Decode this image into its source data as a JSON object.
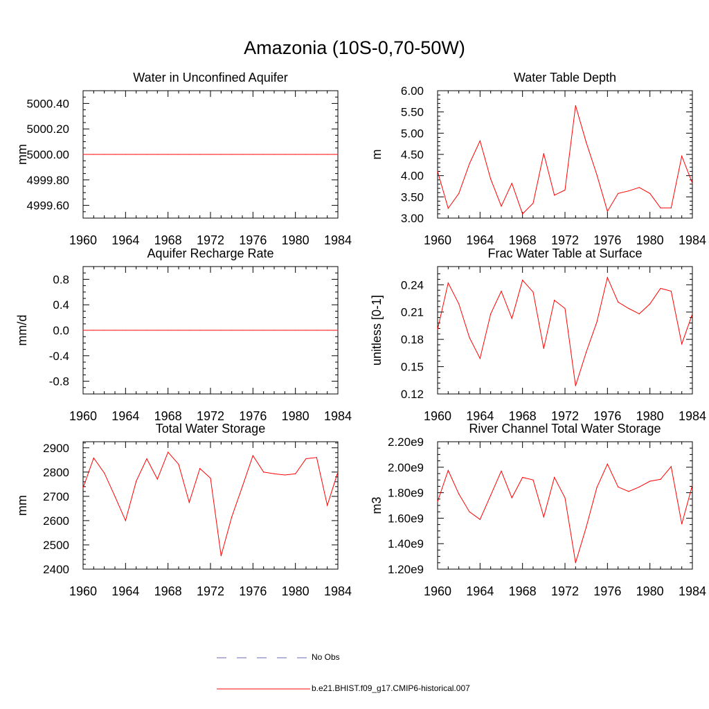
{
  "title": "Amazonia (10S-0,70-50W)",
  "colors": {
    "model": "#ff0000",
    "obs": "#6a6ab4",
    "axis": "#000000"
  },
  "legend": {
    "obs_label": "No Obs",
    "model_label": "b.e21.BHIST.f09_g17.CMIP6-historical.007"
  },
  "chart_data": [
    {
      "type": "line",
      "title": "Water in Unconfined Aquifer",
      "ylabel": "mm",
      "xlim": [
        1960,
        1984
      ],
      "ylim": [
        4999.5,
        5000.5
      ],
      "yticks": [
        4999.6,
        4999.8,
        5000.0,
        5000.2,
        5000.4
      ],
      "ytick_labels": [
        "4999.60",
        "4999.80",
        "5000.00",
        "5000.20",
        "5000.40"
      ],
      "yminor": [
        4999.55,
        4999.65,
        4999.7,
        4999.75,
        4999.85,
        4999.9,
        4999.95,
        5000.05,
        5000.1,
        5000.15,
        5000.25,
        5000.3,
        5000.35,
        5000.45
      ],
      "xticks": [
        1960,
        1964,
        1968,
        1972,
        1976,
        1980,
        1984
      ],
      "xtick_labels": [
        "1960",
        "1964",
        "1968",
        "1972",
        "1976",
        "1980",
        "1984"
      ],
      "x": [
        1960,
        1961,
        1962,
        1963,
        1964,
        1965,
        1966,
        1967,
        1968,
        1969,
        1970,
        1971,
        1972,
        1973,
        1974,
        1975,
        1976,
        1977,
        1978,
        1979,
        1980,
        1981,
        1982,
        1983,
        1984
      ],
      "values": [
        5000,
        5000,
        5000,
        5000,
        5000,
        5000,
        5000,
        5000,
        5000,
        5000,
        5000,
        5000,
        5000,
        5000,
        5000,
        5000,
        5000,
        5000,
        5000,
        5000,
        5000,
        5000,
        5000,
        5000,
        5000
      ]
    },
    {
      "type": "line",
      "title": "Water Table Depth",
      "ylabel": "m",
      "xlim": [
        1960,
        1984
      ],
      "ylim": [
        3.0,
        6.0
      ],
      "yticks": [
        3.0,
        3.5,
        4.0,
        4.5,
        5.0,
        5.5,
        6.0
      ],
      "ytick_labels": [
        "3.00",
        "3.50",
        "4.00",
        "4.50",
        "5.00",
        "5.50",
        "6.00"
      ],
      "yminor": [
        3.1,
        3.2,
        3.3,
        3.4,
        3.6,
        3.7,
        3.8,
        3.9,
        4.1,
        4.2,
        4.3,
        4.4,
        4.6,
        4.7,
        4.8,
        4.9,
        5.1,
        5.2,
        5.3,
        5.4,
        5.6,
        5.7,
        5.8,
        5.9
      ],
      "xticks": [
        1960,
        1964,
        1968,
        1972,
        1976,
        1980,
        1984
      ],
      "xtick_labels": [
        "1960",
        "1964",
        "1968",
        "1972",
        "1976",
        "1980",
        "1984"
      ],
      "x": [
        1960,
        1961,
        1962,
        1963,
        1964,
        1965,
        1966,
        1967,
        1968,
        1969,
        1970,
        1971,
        1972,
        1973,
        1974,
        1975,
        1976,
        1977,
        1978,
        1979,
        1980,
        1981,
        1982,
        1983,
        1984
      ],
      "values": [
        4.1,
        3.23,
        3.58,
        4.28,
        4.82,
        3.92,
        3.28,
        3.82,
        3.1,
        3.35,
        4.52,
        3.54,
        3.66,
        5.65,
        4.78,
        4.02,
        3.16,
        3.58,
        3.64,
        3.72,
        3.58,
        3.24,
        3.24,
        4.46,
        3.82
      ]
    },
    {
      "type": "line",
      "title": "Aquifer Recharge Rate",
      "ylabel": "mm/d",
      "xlim": [
        1960,
        1984
      ],
      "ylim": [
        -1.0,
        1.0
      ],
      "yticks": [
        -0.8,
        -0.4,
        0.0,
        0.4,
        0.8
      ],
      "ytick_labels": [
        "-0.8",
        "-0.4",
        "0.0",
        "0.4",
        "0.8"
      ],
      "yminor": [
        -0.9,
        -0.7,
        -0.6,
        -0.5,
        -0.3,
        -0.2,
        -0.1,
        0.1,
        0.2,
        0.3,
        0.5,
        0.6,
        0.7,
        0.9
      ],
      "xticks": [
        1960,
        1964,
        1968,
        1972,
        1976,
        1980,
        1984
      ],
      "xtick_labels": [
        "1960",
        "1964",
        "1968",
        "1972",
        "1976",
        "1980",
        "1984"
      ],
      "x": [
        1960,
        1961,
        1962,
        1963,
        1964,
        1965,
        1966,
        1967,
        1968,
        1969,
        1970,
        1971,
        1972,
        1973,
        1974,
        1975,
        1976,
        1977,
        1978,
        1979,
        1980,
        1981,
        1982,
        1983,
        1984
      ],
      "values": [
        0,
        0,
        0,
        0,
        0,
        0,
        0,
        0,
        0,
        0,
        0,
        0,
        0,
        0,
        0,
        0,
        0,
        0,
        0,
        0,
        0,
        0,
        0,
        0,
        0
      ]
    },
    {
      "type": "line",
      "title": "Frac Water Table at Surface",
      "ylabel": "unitless [0-1]",
      "xlim": [
        1960,
        1984
      ],
      "ylim": [
        0.12,
        0.26
      ],
      "yticks": [
        0.12,
        0.15,
        0.18,
        0.21,
        0.24
      ],
      "ytick_labels": [
        "0.12",
        "0.15",
        "0.18",
        "0.21",
        "0.24"
      ],
      "yminor": [
        0.126,
        0.132,
        0.138,
        0.144,
        0.156,
        0.162,
        0.168,
        0.174,
        0.186,
        0.192,
        0.198,
        0.204,
        0.216,
        0.222,
        0.228,
        0.234,
        0.246,
        0.252
      ],
      "xticks": [
        1960,
        1964,
        1968,
        1972,
        1976,
        1980,
        1984
      ],
      "xtick_labels": [
        "1960",
        "1964",
        "1968",
        "1972",
        "1976",
        "1980",
        "1984"
      ],
      "x": [
        1960,
        1961,
        1962,
        1963,
        1964,
        1965,
        1966,
        1967,
        1968,
        1969,
        1970,
        1971,
        1972,
        1973,
        1974,
        1975,
        1976,
        1977,
        1978,
        1979,
        1980,
        1981,
        1982,
        1983,
        1984
      ],
      "values": [
        0.191,
        0.242,
        0.219,
        0.182,
        0.159,
        0.208,
        0.233,
        0.203,
        0.245,
        0.232,
        0.17,
        0.223,
        0.214,
        0.129,
        0.166,
        0.199,
        0.248,
        0.221,
        0.214,
        0.208,
        0.219,
        0.236,
        0.233,
        0.175,
        0.208
      ]
    },
    {
      "type": "line",
      "title": "Total Water Storage",
      "ylabel": "mm",
      "xlim": [
        1960,
        1984
      ],
      "ylim": [
        2400,
        2925
      ],
      "yticks": [
        2400,
        2500,
        2600,
        2700,
        2800,
        2900
      ],
      "ytick_labels": [
        "2400",
        "2500",
        "2600",
        "2700",
        "2800",
        "2900"
      ],
      "yminor": [
        2420,
        2440,
        2460,
        2480,
        2520,
        2540,
        2560,
        2580,
        2620,
        2640,
        2660,
        2680,
        2720,
        2740,
        2760,
        2780,
        2820,
        2840,
        2860,
        2880,
        2920
      ],
      "xticks": [
        1960,
        1964,
        1968,
        1972,
        1976,
        1980,
        1984
      ],
      "xtick_labels": [
        "1960",
        "1964",
        "1968",
        "1972",
        "1976",
        "1980",
        "1984"
      ],
      "x": [
        1960,
        1961,
        1962,
        1963,
        1964,
        1965,
        1966,
        1967,
        1968,
        1969,
        1970,
        1971,
        1972,
        1973,
        1974,
        1975,
        1976,
        1977,
        1978,
        1979,
        1980,
        1981,
        1982,
        1983,
        1984
      ],
      "values": [
        2735,
        2858,
        2796,
        2700,
        2600,
        2762,
        2855,
        2771,
        2882,
        2832,
        2675,
        2815,
        2775,
        2455,
        2615,
        2740,
        2868,
        2800,
        2793,
        2788,
        2793,
        2855,
        2860,
        2663,
        2800
      ]
    },
    {
      "type": "line",
      "title": "River Channel Total Water Storage",
      "ylabel": "m3",
      "xlim": [
        1960,
        1984
      ],
      "ylim": [
        1200000000.0,
        2200000000.0
      ],
      "yticks": [
        1200000000.0,
        1400000000.0,
        1600000000.0,
        1800000000.0,
        2000000000.0,
        2200000000.0
      ],
      "ytick_labels": [
        "1.20e9",
        "1.40e9",
        "1.60e9",
        "1.80e9",
        "2.00e9",
        "2.20e9"
      ],
      "yminor": [
        1250000000.0,
        1300000000.0,
        1350000000.0,
        1450000000.0,
        1500000000.0,
        1550000000.0,
        1650000000.0,
        1700000000.0,
        1750000000.0,
        1850000000.0,
        1900000000.0,
        1950000000.0,
        2050000000.0,
        2100000000.0,
        2150000000.0
      ],
      "xticks": [
        1960,
        1964,
        1968,
        1972,
        1976,
        1980,
        1984
      ],
      "xtick_labels": [
        "1960",
        "1964",
        "1968",
        "1972",
        "1976",
        "1980",
        "1984"
      ],
      "x": [
        1960,
        1961,
        1962,
        1963,
        1964,
        1965,
        1966,
        1967,
        1968,
        1969,
        1970,
        1971,
        1972,
        1973,
        1974,
        1975,
        1976,
        1977,
        1978,
        1979,
        1980,
        1981,
        1982,
        1983,
        1984
      ],
      "values": [
        1730000000.0,
        1975000000.0,
        1790000000.0,
        1650000000.0,
        1590000000.0,
        1780000000.0,
        1970000000.0,
        1760000000.0,
        1920000000.0,
        1900000000.0,
        1610000000.0,
        1920000000.0,
        1760000000.0,
        1250000000.0,
        1530000000.0,
        1840000000.0,
        2025000000.0,
        1845000000.0,
        1810000000.0,
        1845000000.0,
        1890000000.0,
        1905000000.0,
        2005000000.0,
        1555000000.0,
        1860000000.0
      ]
    }
  ]
}
